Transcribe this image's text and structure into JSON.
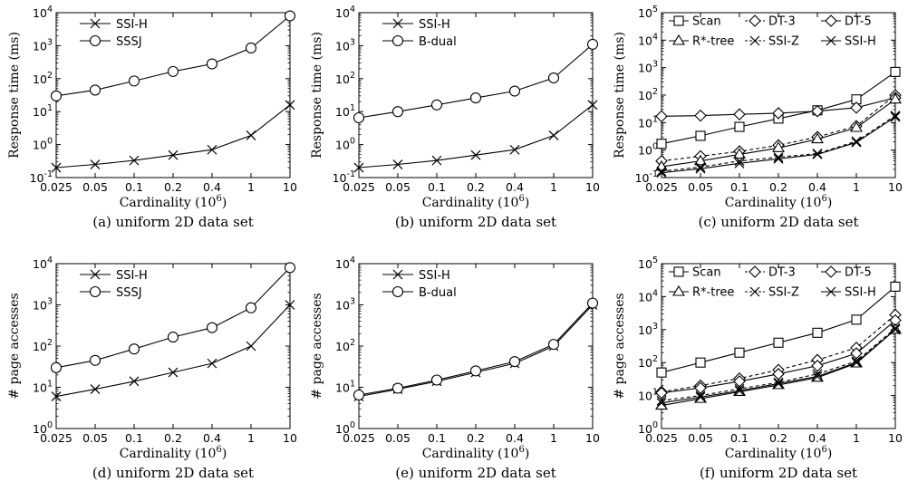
{
  "colors": {
    "foreground": "#000000",
    "background": "#ffffff"
  },
  "chart_data": [
    {
      "id": "a",
      "type": "line",
      "caption": "(a) uniform 2D data set",
      "xlabel": "Cardinality (10^6)",
      "ylabel": "Response time (ms)",
      "x_scale": "categorical",
      "y_scale": "log",
      "ylim": [
        0.1,
        10000
      ],
      "categories": [
        "0.025",
        "0.05",
        "0.1",
        "0.2",
        "0.4",
        "1",
        "10"
      ],
      "ytick_exponents": [
        -1,
        0,
        1,
        2,
        3,
        4
      ],
      "legend_columns": 1,
      "legend_position": "top-left",
      "grid": false,
      "series": [
        {
          "name": "SSI-H",
          "marker": "x",
          "dash": "solid",
          "values": [
            0.2,
            0.25,
            0.33,
            0.48,
            0.7,
            1.9,
            16
          ]
        },
        {
          "name": "SSSJ",
          "marker": "circle",
          "dash": "solid",
          "values": [
            30,
            45,
            85,
            165,
            280,
            850,
            8000
          ]
        }
      ]
    },
    {
      "id": "b",
      "type": "line",
      "caption": "(b) uniform 2D data set",
      "xlabel": "Cardinality (10^6)",
      "ylabel": "Response time (ms)",
      "x_scale": "categorical",
      "y_scale": "log",
      "ylim": [
        0.1,
        10000
      ],
      "categories": [
        "0.025",
        "0.05",
        "0.1",
        "0.2",
        "0.4",
        "1",
        "10"
      ],
      "ytick_exponents": [
        -1,
        0,
        1,
        2,
        3,
        4
      ],
      "legend_columns": 1,
      "legend_position": "top-left",
      "grid": false,
      "series": [
        {
          "name": "SSI-H",
          "marker": "x",
          "dash": "solid",
          "values": [
            0.2,
            0.25,
            0.33,
            0.48,
            0.7,
            1.9,
            16
          ]
        },
        {
          "name": "B-dual",
          "marker": "circle",
          "dash": "solid",
          "values": [
            6.5,
            10,
            16,
            26,
            42,
            105,
            1100
          ]
        }
      ]
    },
    {
      "id": "c",
      "type": "line",
      "caption": "(c) uniform 2D data set",
      "xlabel": "Cardinality (10^6)",
      "ylabel": "Response time (ms)",
      "x_scale": "categorical",
      "y_scale": "log",
      "ylim": [
        0.1,
        100000
      ],
      "categories": [
        "0.025",
        "0.05",
        "0.1",
        "0.2",
        "0.4",
        "1",
        "10"
      ],
      "ytick_exponents": [
        -1,
        0,
        1,
        2,
        3,
        4,
        5
      ],
      "legend_columns": 3,
      "legend_position": "top",
      "grid": false,
      "series": [
        {
          "name": "Scan",
          "marker": "square",
          "dash": "solid",
          "values": [
            1.7,
            3.3,
            7,
            14,
            28,
            70,
            700
          ]
        },
        {
          "name": "DT-3",
          "marker": "diamond",
          "dash": "dashed",
          "values": [
            0.4,
            0.6,
            0.9,
            1.5,
            3,
            7.5,
            100
          ]
        },
        {
          "name": "DT-5",
          "marker": "diamond",
          "dash": "solid",
          "values": [
            17,
            18,
            20,
            22,
            26,
            35,
            80
          ]
        },
        {
          "name": "R*-tree",
          "marker": "triangle",
          "dash": "solid",
          "values": [
            0.25,
            0.4,
            0.7,
            1.2,
            2.5,
            6.5,
            70
          ]
        },
        {
          "name": "SSI-Z",
          "marker": "x",
          "dash": "dashed",
          "values": [
            0.17,
            0.24,
            0.4,
            0.55,
            0.75,
            2.1,
            18
          ]
        },
        {
          "name": "SSI-H",
          "marker": "x",
          "dash": "solid",
          "values": [
            0.15,
            0.21,
            0.33,
            0.48,
            0.7,
            1.9,
            16
          ]
        }
      ]
    },
    {
      "id": "d",
      "type": "line",
      "caption": "(d) uniform 2D data set",
      "xlabel": "Cardinality (10^6)",
      "ylabel": "# page accesses",
      "x_scale": "categorical",
      "y_scale": "log",
      "ylim": [
        1,
        10000
      ],
      "categories": [
        "0.025",
        "0.05",
        "0.1",
        "0.2",
        "0.4",
        "1",
        "10"
      ],
      "ytick_exponents": [
        0,
        1,
        2,
        3,
        4
      ],
      "legend_columns": 1,
      "legend_position": "top-left",
      "grid": false,
      "series": [
        {
          "name": "SSI-H",
          "marker": "x",
          "dash": "solid",
          "values": [
            6,
            9,
            14,
            23,
            38,
            100,
            1000
          ]
        },
        {
          "name": "SSSJ",
          "marker": "circle",
          "dash": "solid",
          "values": [
            30,
            45,
            85,
            165,
            280,
            850,
            8000
          ]
        }
      ]
    },
    {
      "id": "e",
      "type": "line",
      "caption": "(e) uniform 2D data set",
      "xlabel": "Cardinality (10^6)",
      "ylabel": "# page accesses",
      "x_scale": "categorical",
      "y_scale": "log",
      "ylim": [
        1,
        10000
      ],
      "categories": [
        "0.025",
        "0.05",
        "0.1",
        "0.2",
        "0.4",
        "1",
        "10"
      ],
      "ytick_exponents": [
        0,
        1,
        2,
        3,
        4
      ],
      "legend_columns": 1,
      "legend_position": "top-left",
      "grid": false,
      "series": [
        {
          "name": "SSI-H",
          "marker": "x",
          "dash": "solid",
          "values": [
            6,
            9,
            14,
            23,
            38,
            100,
            1000
          ]
        },
        {
          "name": "B-dual",
          "marker": "circle",
          "dash": "solid",
          "values": [
            6.5,
            9.5,
            15,
            25,
            42,
            110,
            1100
          ]
        }
      ]
    },
    {
      "id": "f",
      "type": "line",
      "caption": "(f) uniform 2D data set",
      "xlabel": "Cardinality (10^6)",
      "ylabel": "# page accesses",
      "x_scale": "categorical",
      "y_scale": "log",
      "ylim": [
        1,
        100000
      ],
      "categories": [
        "0.025",
        "0.05",
        "0.1",
        "0.2",
        "0.4",
        "1",
        "10"
      ],
      "ytick_exponents": [
        0,
        1,
        2,
        3,
        4,
        5
      ],
      "legend_columns": 3,
      "legend_position": "top",
      "grid": false,
      "series": [
        {
          "name": "Scan",
          "marker": "square",
          "dash": "solid",
          "values": [
            50,
            100,
            200,
            400,
            800,
            2000,
            20000
          ]
        },
        {
          "name": "DT-3",
          "marker": "diamond",
          "dash": "dashed",
          "values": [
            13,
            20,
            33,
            60,
            120,
            280,
            2800
          ]
        },
        {
          "name": "DT-5",
          "marker": "diamond",
          "dash": "solid",
          "values": [
            12,
            17,
            27,
            45,
            80,
            190,
            1900
          ]
        },
        {
          "name": "R*-tree",
          "marker": "triangle",
          "dash": "solid",
          "values": [
            5,
            8,
            13,
            21,
            35,
            95,
            1000
          ]
        },
        {
          "name": "SSI-Z",
          "marker": "x",
          "dash": "dashed",
          "values": [
            7,
            10,
            16,
            25,
            45,
            110,
            1100
          ]
        },
        {
          "name": "SSI-H",
          "marker": "x",
          "dash": "solid",
          "values": [
            6,
            9,
            14,
            23,
            38,
            100,
            1000
          ]
        }
      ]
    }
  ]
}
